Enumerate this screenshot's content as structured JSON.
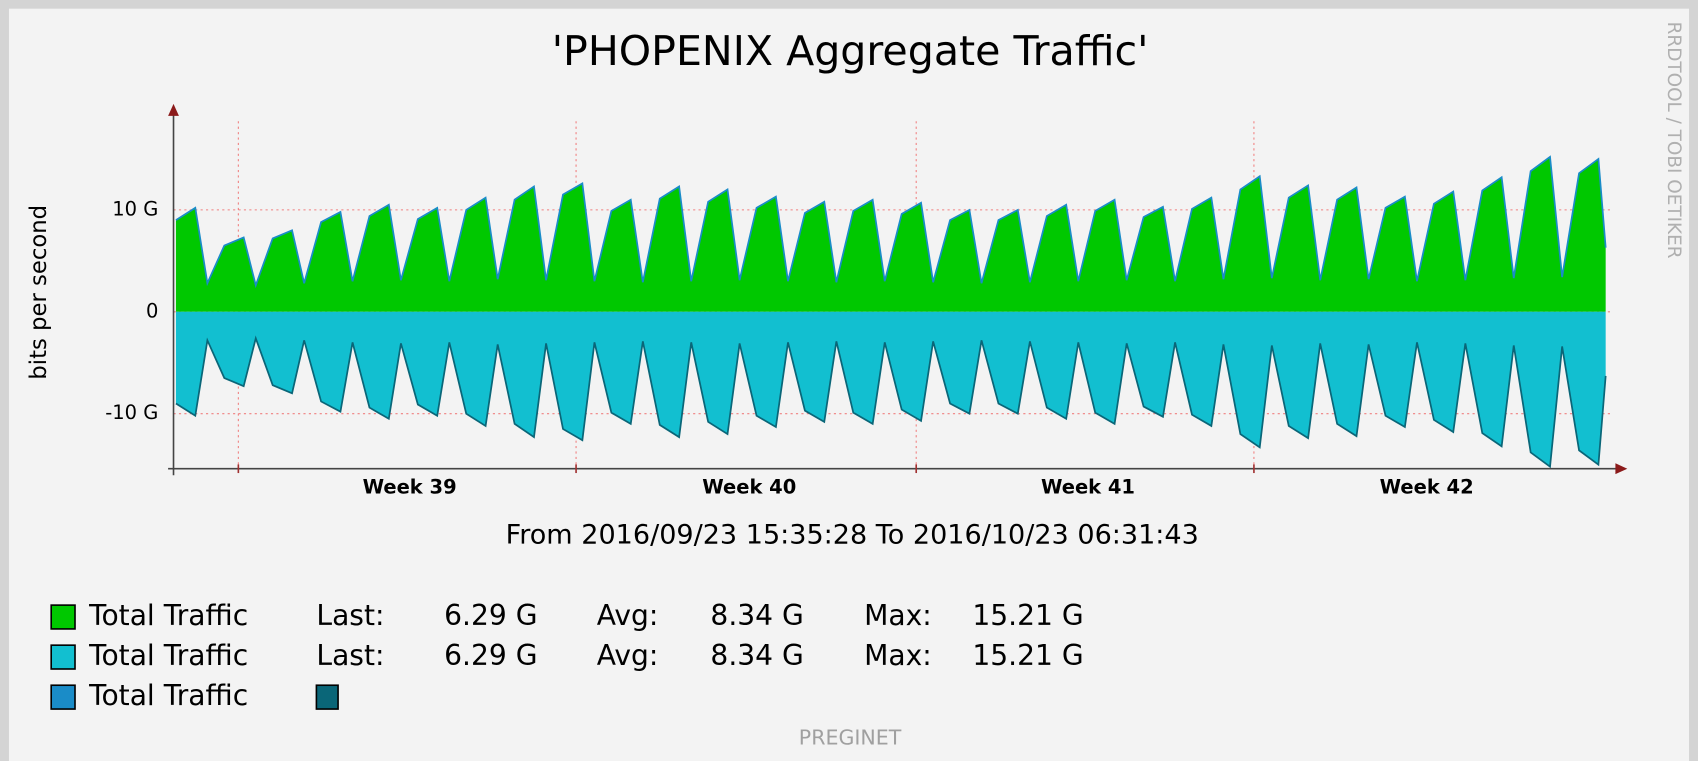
{
  "chart_data": {
    "type": "area",
    "title": "'PHOPENIX Aggregate Traffic'",
    "subtitle": "From 2016/09/23 15:35:28 To 2016/10/23 06:31:43",
    "y_label": "bits per second",
    "watermark": "RRDTOOL / TOBI OETIKER",
    "footer": "PREGINET",
    "x": [
      0.05,
      0.45,
      0.7,
      1.05,
      1.45,
      1.7,
      2.05,
      2.45,
      2.7,
      3.05,
      3.45,
      3.7,
      4.05,
      4.45,
      4.7,
      5.05,
      5.45,
      5.7,
      6.05,
      6.45,
      6.7,
      7.05,
      7.45,
      7.7,
      8.05,
      8.45,
      8.7,
      9.05,
      9.45,
      9.7,
      10.05,
      10.45,
      10.7,
      11.05,
      11.45,
      11.7,
      12.05,
      12.45,
      12.7,
      13.05,
      13.45,
      13.7,
      14.05,
      14.45,
      14.7,
      15.05,
      15.45,
      15.7,
      16.05,
      16.45,
      16.7,
      17.05,
      17.45,
      17.7,
      18.05,
      18.45,
      18.7,
      19.05,
      19.45,
      19.7,
      20.05,
      20.45,
      20.7,
      21.05,
      21.45,
      21.7,
      22.05,
      22.45,
      22.7,
      23.05,
      23.45,
      23.7,
      24.05,
      24.45,
      24.7,
      25.05,
      25.45,
      25.7,
      26.05,
      26.45,
      26.7,
      27.05,
      27.45,
      27.7,
      28.05,
      28.45,
      28.7,
      29.05,
      29.45,
      29.6
    ],
    "series": [
      {
        "name": "Total Traffic",
        "color": "#00c800",
        "stats": [
          [
            "Last:",
            "6.29 G"
          ],
          [
            "Avg:",
            "8.34 G"
          ],
          [
            "Max:",
            "15.21 G"
          ]
        ],
        "values": [
          9.0,
          10.2,
          2.8,
          6.5,
          7.3,
          2.6,
          7.2,
          8.0,
          2.8,
          8.8,
          9.8,
          3.0,
          9.4,
          10.5,
          3.1,
          9.1,
          10.2,
          3.0,
          10.0,
          11.2,
          3.2,
          11.0,
          12.3,
          3.1,
          11.5,
          12.6,
          3.0,
          9.9,
          11.0,
          2.9,
          11.1,
          12.3,
          3.0,
          10.8,
          12.0,
          3.1,
          10.2,
          11.3,
          3.0,
          9.7,
          10.8,
          2.9,
          9.9,
          11.0,
          3.0,
          9.6,
          10.7,
          2.9,
          9.0,
          10.0,
          2.8,
          9.0,
          10.0,
          2.9,
          9.4,
          10.5,
          3.0,
          9.9,
          11.0,
          3.1,
          9.3,
          10.3,
          3.0,
          10.1,
          11.2,
          3.2,
          12.0,
          13.3,
          3.3,
          11.2,
          12.4,
          3.1,
          11.0,
          12.2,
          3.2,
          10.2,
          11.3,
          3.0,
          10.6,
          11.8,
          3.1,
          11.9,
          13.2,
          3.3,
          13.8,
          15.2,
          3.4,
          13.6,
          15.0,
          6.29
        ]
      },
      {
        "name": "Total Traffic",
        "color": "#12bfd0",
        "stats": [
          [
            "Last:",
            "6.29 G"
          ],
          [
            "Avg:",
            "8.34 G"
          ],
          [
            "Max:",
            "15.21 G"
          ]
        ],
        "values": [
          -9.0,
          -10.2,
          -2.8,
          -6.5,
          -7.3,
          -2.6,
          -7.2,
          -8.0,
          -2.8,
          -8.8,
          -9.8,
          -3.0,
          -9.4,
          -10.5,
          -3.1,
          -9.1,
          -10.2,
          -3.0,
          -10.0,
          -11.2,
          -3.2,
          -11.0,
          -12.3,
          -3.1,
          -11.5,
          -12.6,
          -3.0,
          -9.9,
          -11.0,
          -2.9,
          -11.1,
          -12.3,
          -3.0,
          -10.8,
          -12.0,
          -3.1,
          -10.2,
          -11.3,
          -3.0,
          -9.7,
          -10.8,
          -2.9,
          -9.9,
          -11.0,
          -3.0,
          -9.6,
          -10.7,
          -2.9,
          -9.0,
          -10.0,
          -2.8,
          -9.0,
          -10.0,
          -2.9,
          -9.4,
          -10.5,
          -3.0,
          -9.9,
          -11.0,
          -3.1,
          -9.3,
          -10.3,
          -3.0,
          -10.1,
          -11.2,
          -3.2,
          -12.0,
          -13.3,
          -3.3,
          -11.2,
          -12.4,
          -3.1,
          -11.0,
          -12.2,
          -3.2,
          -10.2,
          -11.3,
          -3.0,
          -10.6,
          -11.8,
          -3.1,
          -11.9,
          -13.2,
          -3.3,
          -13.8,
          -15.2,
          -3.4,
          -13.6,
          -15.0,
          -6.29
        ]
      }
    ],
    "outline": {
      "name": "Total Traffic",
      "color": "#1a8cc8",
      "color2": "#0a6678"
    },
    "xlim": [
      0,
      29.6
    ],
    "xticks": [
      {
        "value": 4.88,
        "label": "Week 39"
      },
      {
        "value": 11.9,
        "label": "Week 40"
      },
      {
        "value": 18.9,
        "label": "Week 41"
      },
      {
        "value": 25.9,
        "label": "Week 42"
      }
    ],
    "xgrid_major": [
      1.34,
      8.32,
      15.35,
      22.33
    ],
    "ylim": [
      -15.4,
      18.7
    ],
    "yticks": [
      {
        "value": 10,
        "label": "10 G"
      },
      0,
      {
        "value": -10,
        "label": "-10 G"
      }
    ],
    "grid": true
  }
}
